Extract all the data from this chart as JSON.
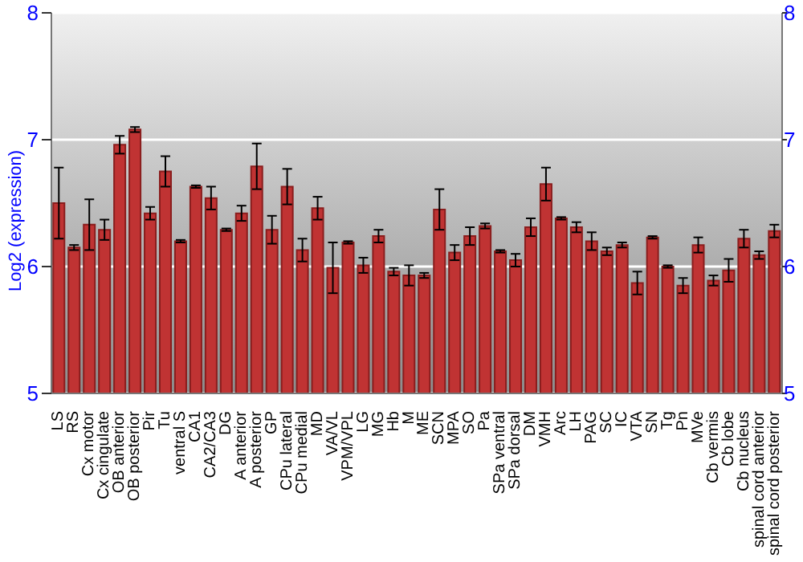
{
  "chart_data": {
    "type": "bar",
    "ylabel": "Log2 (expression)",
    "categories": [
      "LS",
      "RS",
      "Cx motor",
      "Cx cingulate",
      "OB anterior",
      "OB posterior",
      "Pir",
      "Tu",
      "ventral S",
      "CA1",
      "CA2/CA3",
      "DG",
      "A anterior",
      "A posterior",
      "GP",
      "CPu lateral",
      "CPu medial",
      "MD",
      "VA/VL",
      "VPM/VPL",
      "LG",
      "MG",
      "Hb",
      "M",
      "ME",
      "SCN",
      "MPA",
      "SO",
      "Pa",
      "SPa ventral",
      "SPa dorsal",
      "DM",
      "VMH",
      "Arc",
      "LH",
      "PAG",
      "SC",
      "IC",
      "VTA",
      "SN",
      "Tg",
      "Pn",
      "MVe",
      "Cb vermis",
      "Cb lobe",
      "Cb nucleus",
      "spinal cord anterior",
      "spinal cord posterior"
    ],
    "values": [
      6.5,
      6.15,
      6.33,
      6.29,
      6.96,
      7.08,
      6.42,
      6.75,
      6.2,
      6.63,
      6.54,
      6.29,
      6.42,
      6.79,
      6.29,
      6.63,
      6.13,
      6.46,
      5.99,
      6.19,
      6.01,
      6.24,
      5.96,
      5.93,
      5.93,
      6.45,
      6.11,
      6.24,
      6.32,
      6.12,
      6.05,
      6.31,
      6.65,
      6.38,
      6.31,
      6.2,
      6.12,
      6.17,
      5.87,
      6.23,
      6.0,
      5.85,
      6.17,
      5.89,
      5.97,
      6.22,
      6.09,
      6.28
    ],
    "errors": [
      0.28,
      0.02,
      0.2,
      0.08,
      0.07,
      0.02,
      0.05,
      0.12,
      0.01,
      0.01,
      0.09,
      0.01,
      0.06,
      0.18,
      0.11,
      0.14,
      0.09,
      0.09,
      0.2,
      0.01,
      0.06,
      0.05,
      0.03,
      0.08,
      0.02,
      0.16,
      0.06,
      0.07,
      0.02,
      0.01,
      0.05,
      0.07,
      0.13,
      0.01,
      0.04,
      0.07,
      0.03,
      0.02,
      0.09,
      0.01,
      0.01,
      0.06,
      0.06,
      0.04,
      0.09,
      0.07,
      0.03,
      0.05
    ],
    "color": "#c03333",
    "ylim": [
      5,
      8
    ],
    "yticks": [
      5,
      6,
      7,
      8
    ],
    "y2lim": [
      5,
      8
    ],
    "y2ticks": [
      5,
      6,
      7,
      8
    ],
    "grid": "y"
  }
}
